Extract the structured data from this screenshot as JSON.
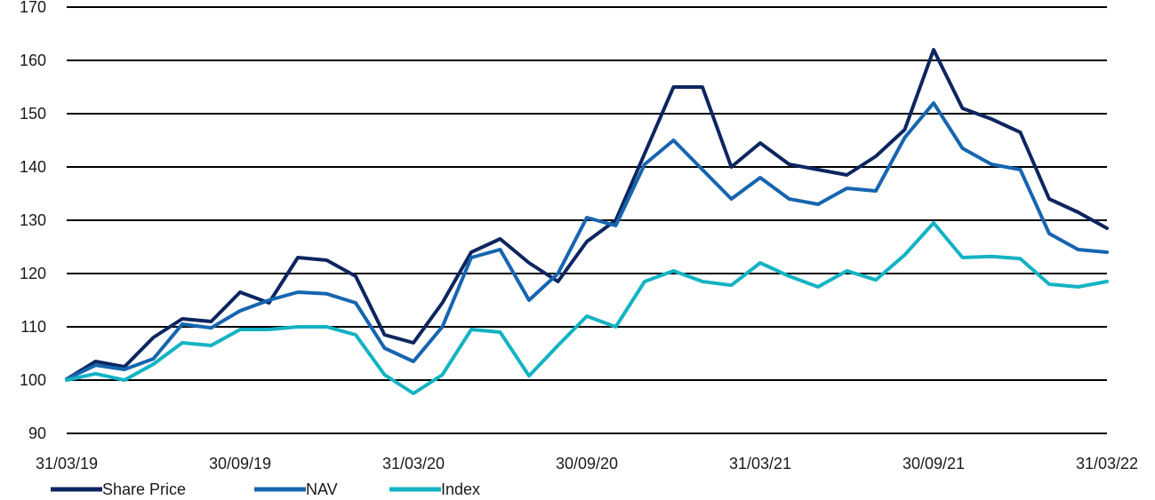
{
  "chart_data": {
    "type": "line",
    "title": "",
    "xlabel": "",
    "ylabel": "",
    "ylim": [
      90,
      170
    ],
    "yticks": [
      90,
      100,
      110,
      120,
      130,
      140,
      150,
      160,
      170
    ],
    "x_tick_labels": [
      "31/03/19",
      "30/09/19",
      "31/03/20",
      "30/09/20",
      "31/03/21",
      "30/09/21",
      "31/03/22"
    ],
    "grid": "horizontal",
    "legend_position": "bottom-left",
    "x": [
      "31/03/19",
      "30/04/19",
      "31/05/19",
      "30/06/19",
      "31/07/19",
      "31/08/19",
      "30/09/19",
      "31/10/19",
      "30/11/19",
      "31/12/19",
      "31/01/20",
      "29/02/20",
      "31/03/20",
      "30/04/20",
      "31/05/20",
      "30/06/20",
      "31/07/20",
      "31/08/20",
      "30/09/20",
      "31/10/20",
      "30/11/20",
      "31/12/20",
      "31/01/21",
      "28/02/21",
      "31/03/21",
      "30/04/21",
      "31/05/21",
      "30/06/21",
      "31/07/21",
      "31/08/21",
      "30/09/21",
      "31/10/21",
      "30/11/21",
      "31/12/21",
      "31/01/22",
      "28/02/22",
      "31/03/22"
    ],
    "series": [
      {
        "name": "Share Price",
        "color": "#0d2660",
        "values": [
          100.2,
          103.5,
          102.5,
          108.0,
          111.5,
          111.0,
          116.5,
          114.5,
          123.0,
          122.5,
          119.5,
          108.5,
          107.0,
          114.5,
          124.0,
          126.5,
          122.0,
          118.5,
          126.0,
          130.0,
          142.5,
          155.0,
          155.0,
          140.0,
          144.5,
          140.5,
          139.5,
          138.5,
          142.0,
          147.0,
          162.0,
          151.0,
          149.0,
          146.5,
          134.0,
          131.5,
          128.5
        ]
      },
      {
        "name": "NAV",
        "color": "#1565b0",
        "values": [
          100.2,
          102.8,
          102.0,
          104.0,
          110.5,
          109.8,
          113.0,
          115.0,
          116.5,
          116.2,
          114.5,
          106.0,
          103.5,
          110.0,
          123.0,
          124.5,
          115.0,
          120.0,
          130.5,
          129.0,
          140.5,
          145.0,
          139.5,
          134.0,
          138.0,
          134.0,
          133.0,
          136.0,
          135.5,
          145.5,
          152.0,
          143.5,
          140.5,
          139.5,
          127.5,
          124.5,
          124.0
        ]
      },
      {
        "name": "Index",
        "color": "#14b3c4",
        "values": [
          100.0,
          101.2,
          100.0,
          103.0,
          107.0,
          106.5,
          109.5,
          109.5,
          110.0,
          110.0,
          108.5,
          101.0,
          97.5,
          101.0,
          109.5,
          109.0,
          100.8,
          106.5,
          112.0,
          110.0,
          118.5,
          120.5,
          118.5,
          117.8,
          122.0,
          119.5,
          117.5,
          120.5,
          118.8,
          123.5,
          129.5,
          123.0,
          123.2,
          122.8,
          118.0,
          117.5,
          118.5
        ]
      }
    ]
  }
}
